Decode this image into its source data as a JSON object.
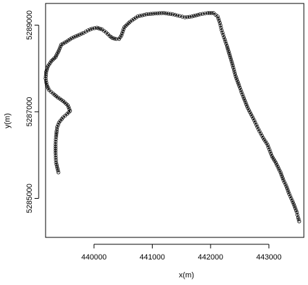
{
  "chart_data": {
    "type": "scatter",
    "xlabel": "x(m)",
    "ylabel": "y(m)",
    "xlim": [
      439170,
      443600
    ],
    "ylim": [
      5284100,
      5289500
    ],
    "x_ticks": [
      440000,
      441000,
      442000,
      443000
    ],
    "x_tick_labels": [
      "440000",
      "441000",
      "442000",
      "443000"
    ],
    "y_ticks": [
      5285000,
      5287000,
      5289000
    ],
    "y_tick_labels": [
      "5285000",
      "5287000",
      "5289000"
    ],
    "grid": false,
    "series": [
      {
        "marker": "open-circle",
        "line": true,
        "x": [
          439390,
          439350,
          439340,
          439340,
          439350,
          439360,
          439370,
          439400,
          439470,
          439540,
          439590,
          439550,
          439470,
          439380,
          439300,
          439230,
          439190,
          439170,
          439180,
          439210,
          439270,
          439340,
          439400,
          439440,
          439530,
          439620,
          439720,
          439820,
          439900,
          439970,
          440050,
          440140,
          440210,
          440270,
          440320,
          440380,
          440430,
          440470,
          440520,
          440620,
          440750,
          440900,
          441050,
          441200,
          441350,
          441470,
          441560,
          441680,
          441820,
          441950,
          442050,
          442120,
          442160,
          442190,
          442230,
          442280,
          442330,
          442380,
          442430,
          442490,
          442560,
          442640,
          442730,
          442820,
          442900,
          442980,
          443050,
          443120,
          443200,
          443250,
          443300,
          443350,
          443400,
          443440,
          443480,
          443500,
          443520
        ],
        "y": [
          5285600,
          5285830,
          5286050,
          5286250,
          5286420,
          5286550,
          5286650,
          5286750,
          5286870,
          5286950,
          5287020,
          5287150,
          5287250,
          5287330,
          5287420,
          5287500,
          5287620,
          5287770,
          5287920,
          5288050,
          5288170,
          5288260,
          5288420,
          5288550,
          5288620,
          5288700,
          5288760,
          5288820,
          5288880,
          5288920,
          5288940,
          5288900,
          5288830,
          5288750,
          5288700,
          5288680,
          5288680,
          5288760,
          5288950,
          5289080,
          5289200,
          5289250,
          5289270,
          5289280,
          5289250,
          5289210,
          5289180,
          5289200,
          5289250,
          5289280,
          5289280,
          5289200,
          5289050,
          5288880,
          5288720,
          5288520,
          5288300,
          5288070,
          5287820,
          5287600,
          5287350,
          5287080,
          5286850,
          5286600,
          5286400,
          5286230,
          5285980,
          5285820,
          5285600,
          5285420,
          5285280,
          5285100,
          5284950,
          5284820,
          5284680,
          5284560,
          5284470
        ]
      }
    ]
  }
}
